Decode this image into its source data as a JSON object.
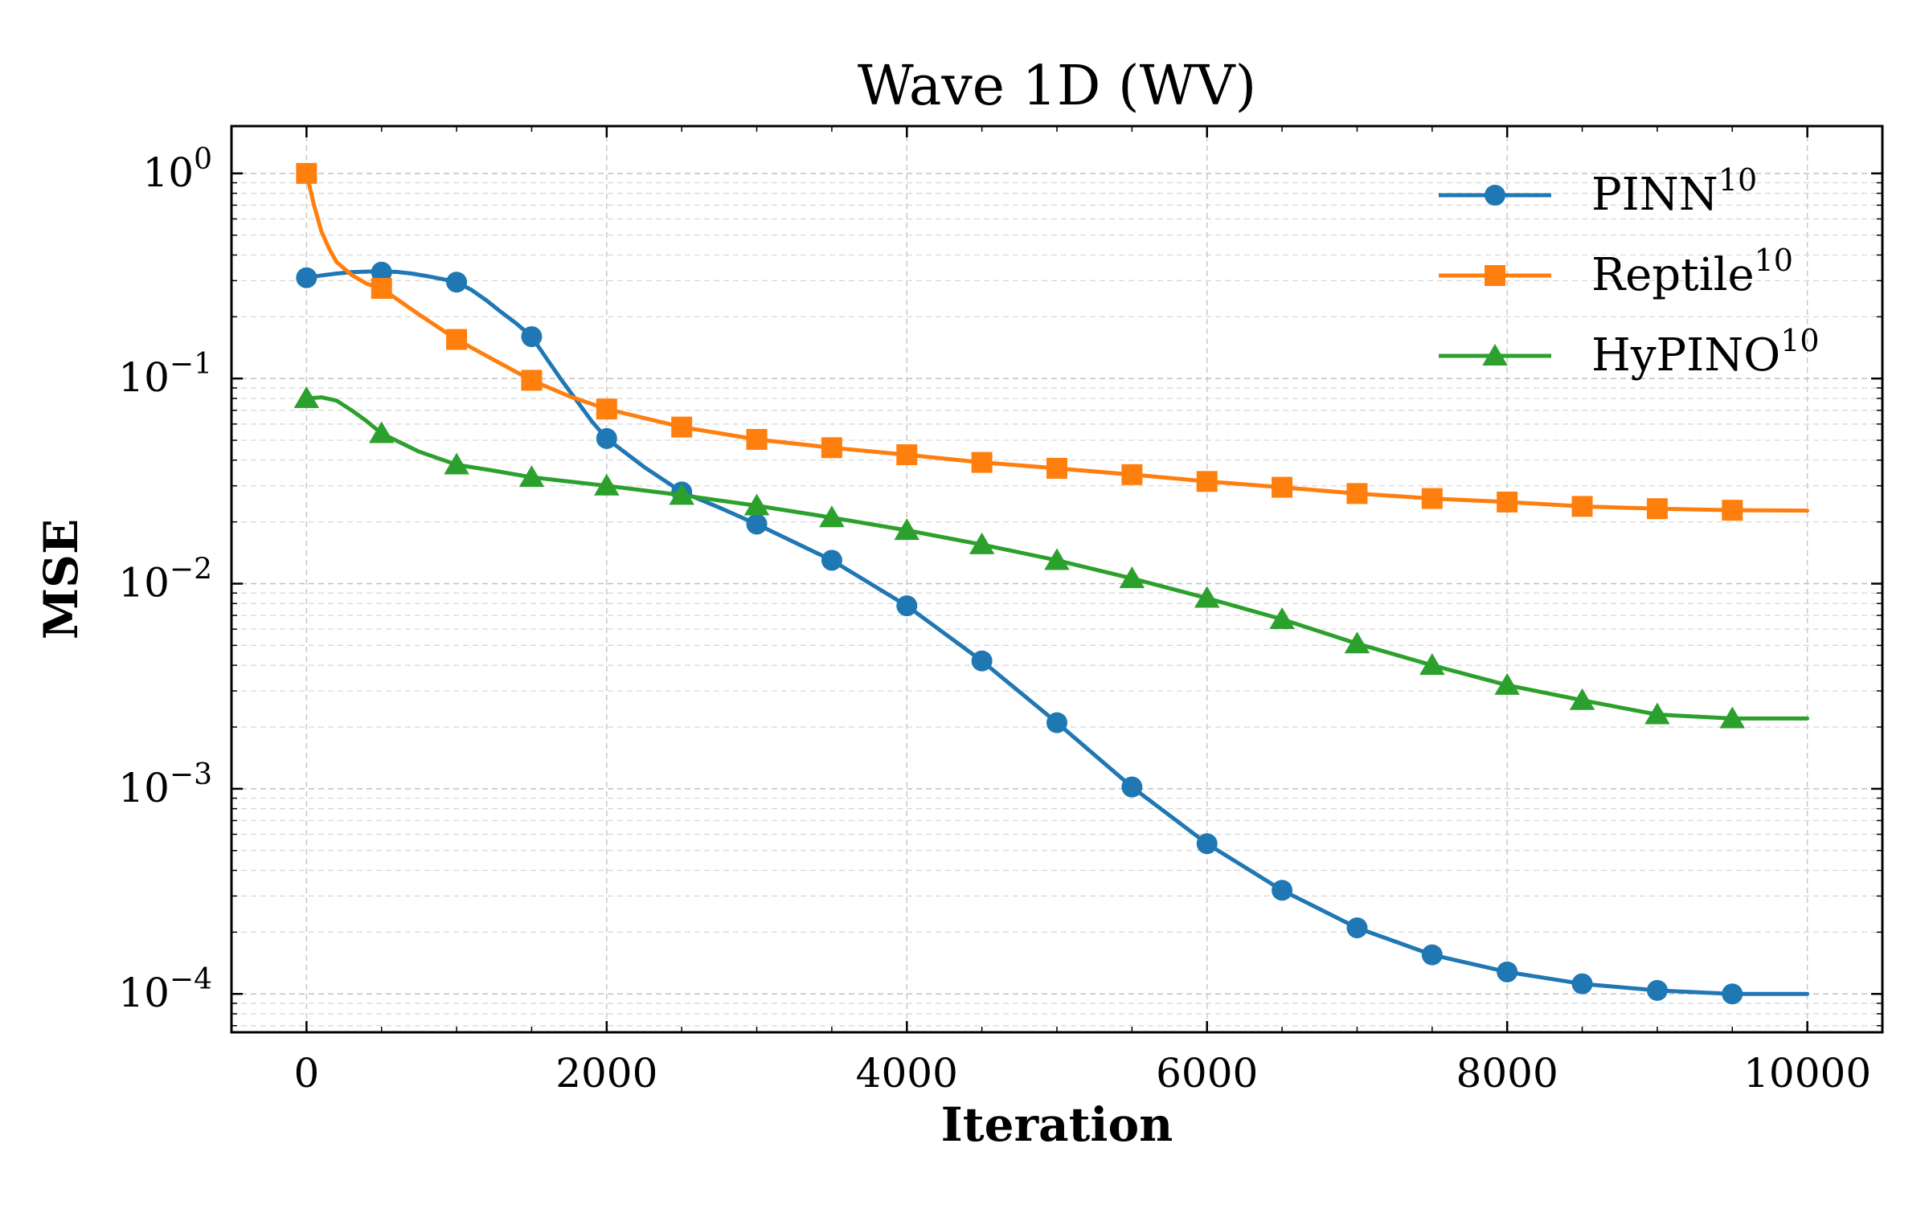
{
  "chart_data": {
    "type": "line",
    "title": "Wave 1D (WV)",
    "xlabel": "Iteration",
    "ylabel": "MSE",
    "yscale": "log",
    "xlim": [
      -500,
      10500
    ],
    "ylim": [
      6.5e-05,
      1.7
    ],
    "grid": true,
    "legend_position": "top-right",
    "x_ticks": [
      {
        "value": 0,
        "label": "0"
      },
      {
        "value": 2000,
        "label": "2000"
      },
      {
        "value": 4000,
        "label": "4000"
      },
      {
        "value": 6000,
        "label": "6000"
      },
      {
        "value": 8000,
        "label": "8000"
      },
      {
        "value": 10000,
        "label": "10000"
      }
    ],
    "y_ticks": [
      {
        "value": 1,
        "base": "10",
        "exp": "0"
      },
      {
        "value": 0.1,
        "base": "10",
        "exp": "−1"
      },
      {
        "value": 0.01,
        "base": "10",
        "exp": "−2"
      },
      {
        "value": 0.001,
        "base": "10",
        "exp": "−3"
      },
      {
        "value": 0.0001,
        "base": "10",
        "exp": "−4"
      }
    ],
    "series": [
      {
        "name": "PINN",
        "sup": "10",
        "color": "#1f77b4",
        "marker": "circle",
        "x": [
          0,
          500,
          1000,
          1500,
          2000,
          2500,
          3000,
          3500,
          4000,
          4500,
          5000,
          5500,
          6000,
          6500,
          7000,
          7500,
          8000,
          8500,
          9000,
          9500
        ],
        "values": [
          0.31,
          0.33,
          0.295,
          0.16,
          0.051,
          0.028,
          0.0195,
          0.013,
          0.0078,
          0.0042,
          0.0021,
          0.00102,
          0.00054,
          0.00032,
          0.00021,
          0.000155,
          0.000128,
          0.000112,
          0.000104,
          0.0001
        ],
        "curve_x": [
          0,
          100,
          200,
          300,
          400,
          500,
          600,
          700,
          800,
          900,
          1000,
          1100,
          1200,
          1300,
          1400,
          1500,
          1600,
          1700,
          1800,
          1900,
          2000,
          2250,
          2500,
          2750,
          3000,
          3500,
          4000,
          4500,
          5000,
          5500,
          6000,
          6500,
          7000,
          7500,
          8000,
          8500,
          9000,
          9500,
          10000
        ],
        "curve_values": [
          0.31,
          0.318,
          0.325,
          0.33,
          0.332,
          0.333,
          0.331,
          0.325,
          0.316,
          0.306,
          0.295,
          0.27,
          0.24,
          0.21,
          0.185,
          0.16,
          0.125,
          0.098,
          0.078,
          0.062,
          0.051,
          0.037,
          0.028,
          0.0235,
          0.0195,
          0.013,
          0.0078,
          0.0042,
          0.0021,
          0.00102,
          0.00054,
          0.00032,
          0.00021,
          0.000155,
          0.000128,
          0.000112,
          0.000104,
          0.0001,
          0.0001
        ]
      },
      {
        "name": "Reptile",
        "sup": "10",
        "color": "#ff7f0e",
        "marker": "square",
        "x": [
          0,
          500,
          1000,
          1500,
          2000,
          2500,
          3000,
          3500,
          4000,
          4500,
          5000,
          5500,
          6000,
          6500,
          7000,
          7500,
          8000,
          8500,
          9000,
          9500
        ],
        "values": [
          1.0,
          0.275,
          0.155,
          0.098,
          0.071,
          0.058,
          0.0505,
          0.046,
          0.0425,
          0.039,
          0.0365,
          0.034,
          0.0315,
          0.0295,
          0.0275,
          0.026,
          0.025,
          0.0238,
          0.0232,
          0.0228
        ],
        "curve_x": [
          0,
          50,
          100,
          150,
          200,
          300,
          400,
          500,
          750,
          1000,
          1250,
          1500,
          1750,
          2000,
          2500,
          3000,
          3500,
          4000,
          4500,
          5000,
          5500,
          6000,
          6500,
          7000,
          7500,
          8000,
          8500,
          9000,
          9500,
          10000
        ],
        "curve_values": [
          1.0,
          0.7,
          0.52,
          0.43,
          0.37,
          0.32,
          0.29,
          0.275,
          0.205,
          0.155,
          0.123,
          0.098,
          0.082,
          0.071,
          0.058,
          0.0505,
          0.046,
          0.0425,
          0.039,
          0.0365,
          0.034,
          0.0315,
          0.0295,
          0.0275,
          0.026,
          0.025,
          0.0238,
          0.0232,
          0.0228,
          0.0227
        ]
      },
      {
        "name": "HyPINO",
        "sup": "10",
        "color": "#2ca02c",
        "marker": "triangle",
        "x": [
          0,
          500,
          1000,
          1500,
          2000,
          2500,
          3000,
          3500,
          4000,
          4500,
          5000,
          5500,
          6000,
          6500,
          7000,
          7500,
          8000,
          8500,
          9000,
          9500
        ],
        "values": [
          0.08,
          0.054,
          0.038,
          0.033,
          0.03,
          0.027,
          0.024,
          0.021,
          0.0182,
          0.0155,
          0.013,
          0.0106,
          0.0085,
          0.0067,
          0.0051,
          0.004,
          0.0032,
          0.0027,
          0.0023,
          0.0022
        ],
        "curve_x": [
          0,
          100,
          200,
          300,
          400,
          500,
          750,
          1000,
          1250,
          1500,
          2000,
          2500,
          3000,
          3500,
          4000,
          4500,
          5000,
          5500,
          6000,
          6500,
          7000,
          7500,
          8000,
          8500,
          9000,
          9500,
          10000
        ],
        "curve_values": [
          0.08,
          0.081,
          0.078,
          0.07,
          0.062,
          0.054,
          0.044,
          0.038,
          0.0355,
          0.033,
          0.03,
          0.027,
          0.024,
          0.021,
          0.0182,
          0.0155,
          0.013,
          0.0106,
          0.0085,
          0.0067,
          0.0051,
          0.004,
          0.0032,
          0.0027,
          0.0023,
          0.0022,
          0.0022
        ]
      }
    ]
  }
}
